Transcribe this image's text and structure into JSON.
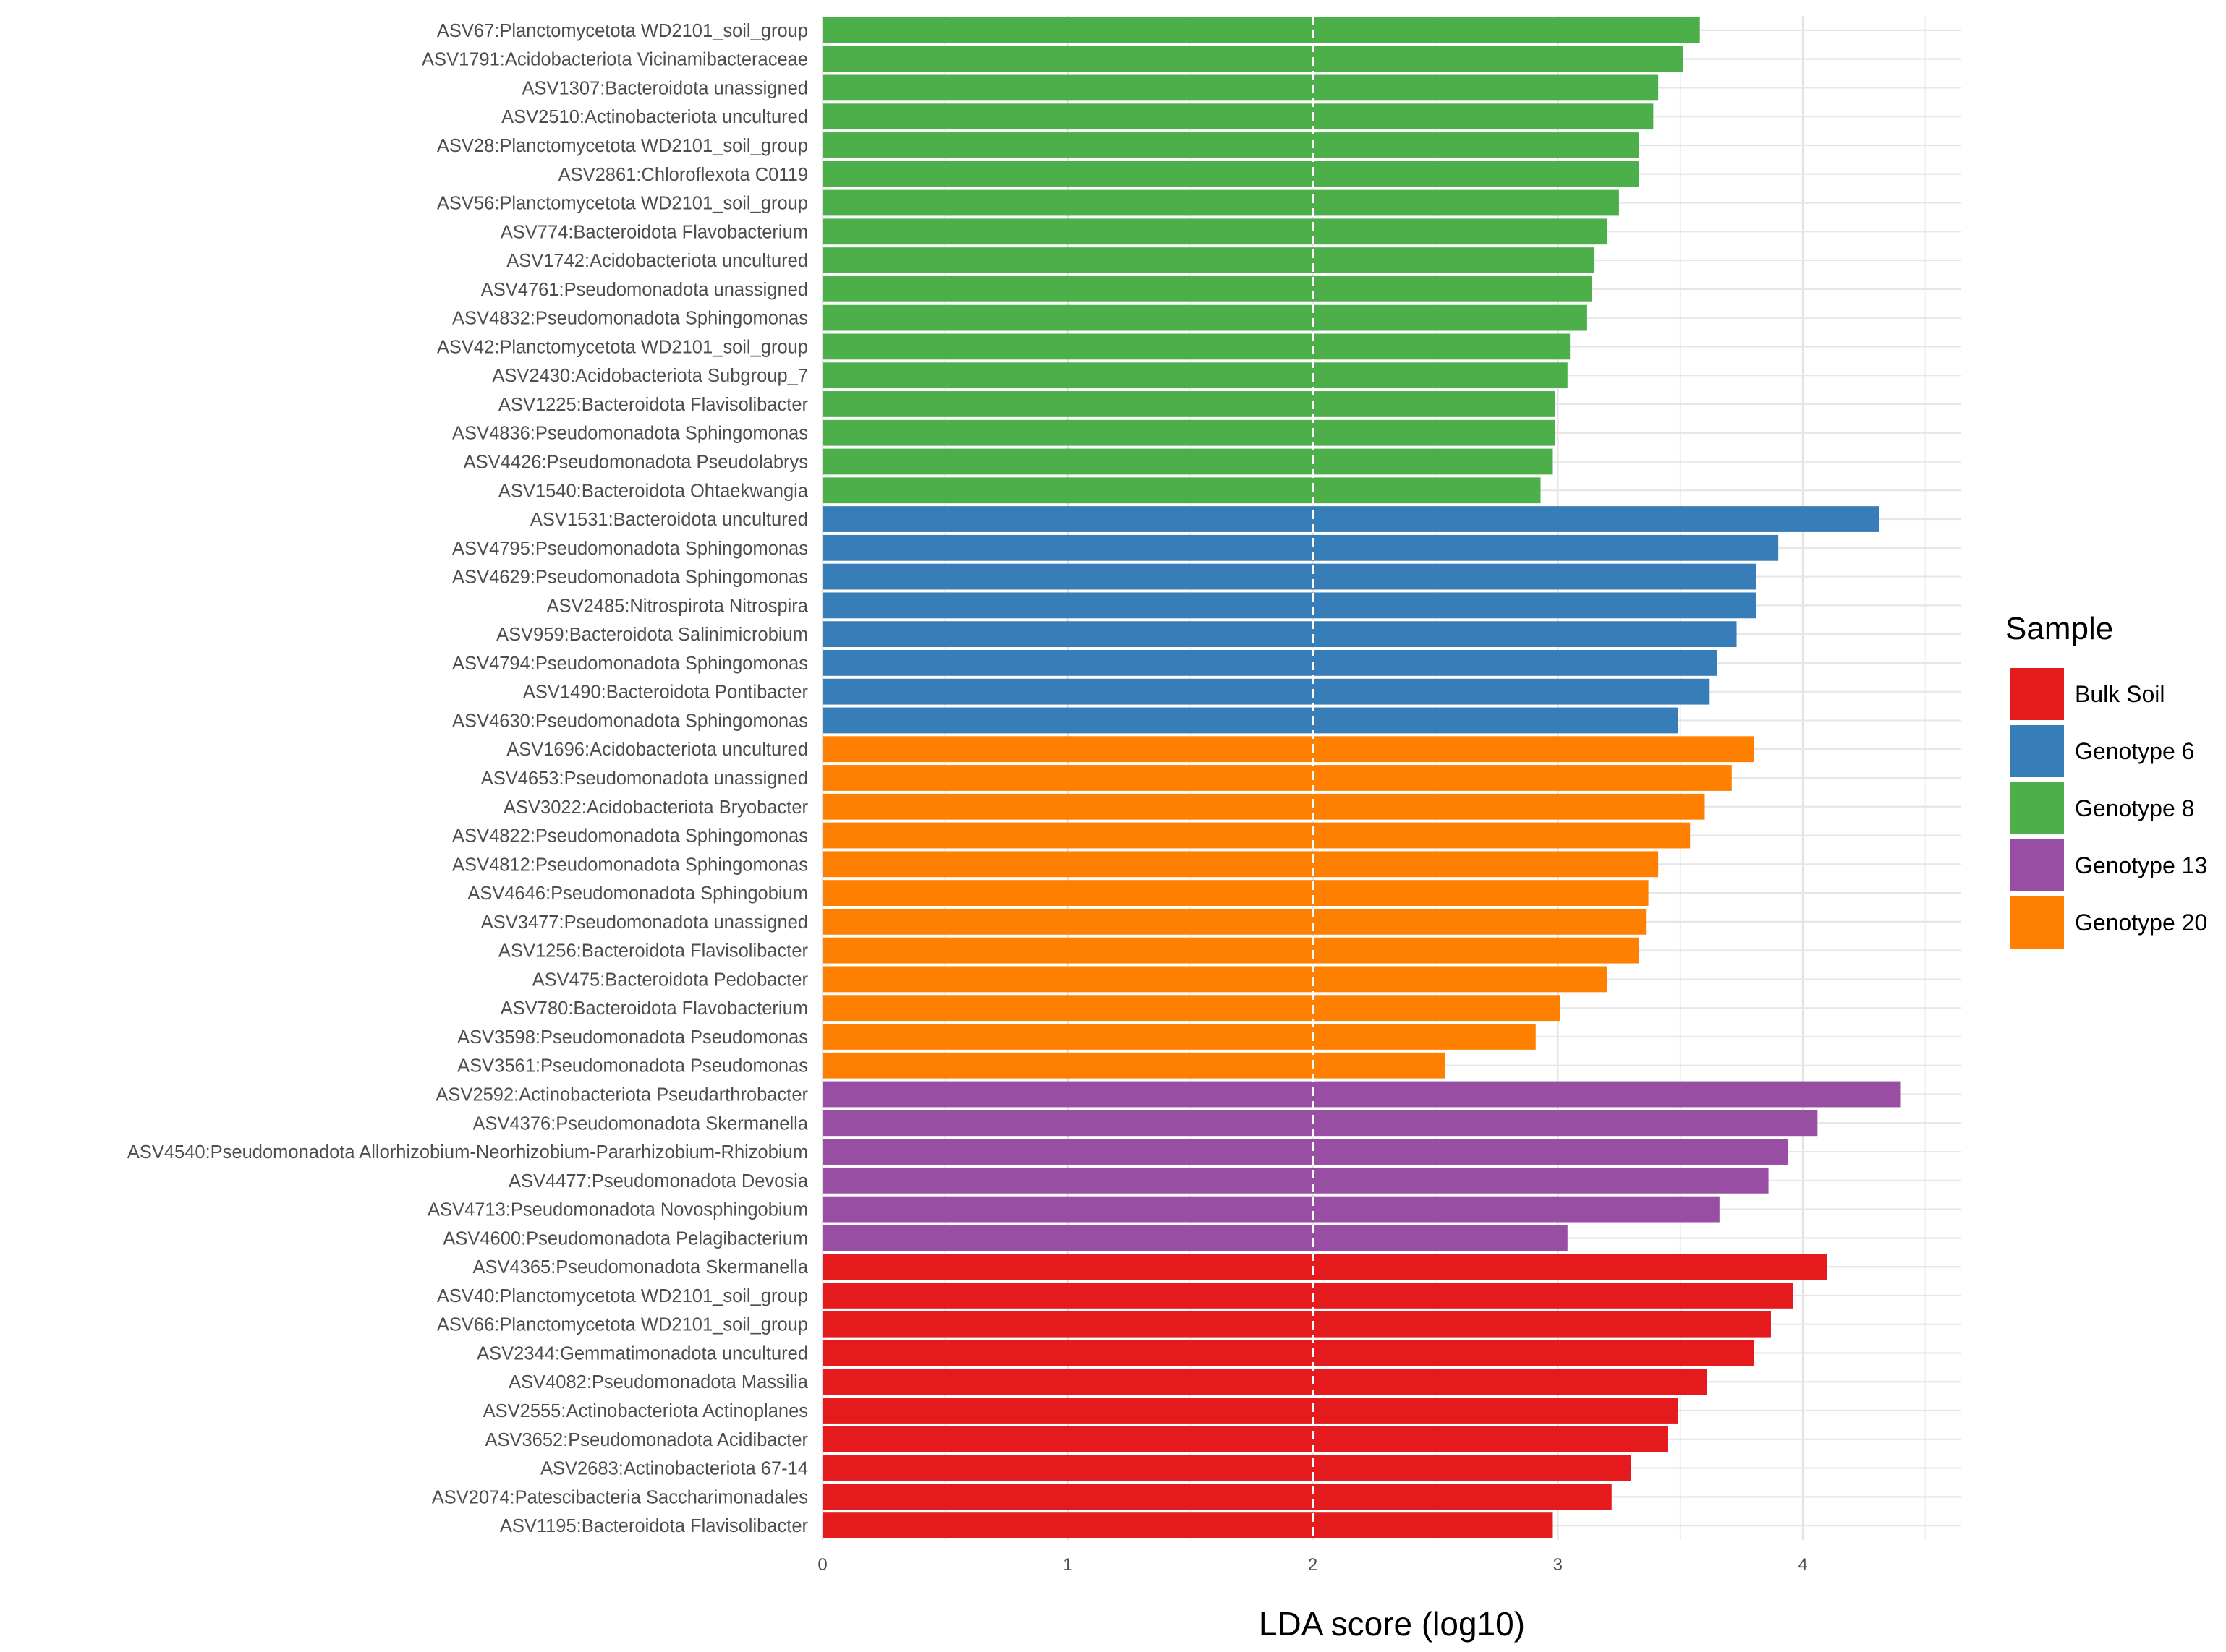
{
  "chart_data": {
    "type": "bar",
    "orientation": "horizontal",
    "xlabel": "LDA score (log10)",
    "xlim": [
      0,
      4.6
    ],
    "xticks": [
      0,
      1,
      2,
      3,
      4
    ],
    "xtick_labels": [
      "0",
      "1",
      "2",
      "3",
      "4"
    ],
    "reference_line": 2,
    "grid": true,
    "legend": {
      "title": "Sample",
      "position": "right",
      "entries": [
        {
          "name": "Bulk Soil",
          "color": "#e41a1c"
        },
        {
          "name": "Genotype 6",
          "color": "#377eb8"
        },
        {
          "name": "Genotype 8",
          "color": "#4daf4a"
        },
        {
          "name": "Genotype 13",
          "color": "#984ea3"
        },
        {
          "name": "Genotype 20",
          "color": "#ff7f00"
        }
      ]
    },
    "bars": [
      {
        "label": "ASV67:Planctomycetota WD2101_soil_group",
        "value": 3.58,
        "group": "Genotype 8"
      },
      {
        "label": "ASV1791:Acidobacteriota Vicinamibacteraceae",
        "value": 3.51,
        "group": "Genotype 8"
      },
      {
        "label": "ASV1307:Bacteroidota unassigned",
        "value": 3.41,
        "group": "Genotype 8"
      },
      {
        "label": "ASV2510:Actinobacteriota uncultured",
        "value": 3.39,
        "group": "Genotype 8"
      },
      {
        "label": "ASV28:Planctomycetota WD2101_soil_group",
        "value": 3.33,
        "group": "Genotype 8"
      },
      {
        "label": "ASV2861:Chloroflexota C0119",
        "value": 3.33,
        "group": "Genotype 8"
      },
      {
        "label": "ASV56:Planctomycetota WD2101_soil_group",
        "value": 3.25,
        "group": "Genotype 8"
      },
      {
        "label": "ASV774:Bacteroidota Flavobacterium",
        "value": 3.2,
        "group": "Genotype 8"
      },
      {
        "label": "ASV1742:Acidobacteriota uncultured",
        "value": 3.15,
        "group": "Genotype 8"
      },
      {
        "label": "ASV4761:Pseudomonadota unassigned",
        "value": 3.14,
        "group": "Genotype 8"
      },
      {
        "label": "ASV4832:Pseudomonadota Sphingomonas",
        "value": 3.12,
        "group": "Genotype 8"
      },
      {
        "label": "ASV42:Planctomycetota WD2101_soil_group",
        "value": 3.05,
        "group": "Genotype 8"
      },
      {
        "label": "ASV2430:Acidobacteriota Subgroup_7",
        "value": 3.04,
        "group": "Genotype 8"
      },
      {
        "label": "ASV1225:Bacteroidota Flavisolibacter",
        "value": 2.99,
        "group": "Genotype 8"
      },
      {
        "label": "ASV4836:Pseudomonadota Sphingomonas",
        "value": 2.99,
        "group": "Genotype 8"
      },
      {
        "label": "ASV4426:Pseudomonadota Pseudolabrys",
        "value": 2.98,
        "group": "Genotype 8"
      },
      {
        "label": "ASV1540:Bacteroidota Ohtaekwangia",
        "value": 2.93,
        "group": "Genotype 8"
      },
      {
        "label": "ASV1531:Bacteroidota uncultured",
        "value": 4.31,
        "group": "Genotype 6"
      },
      {
        "label": "ASV4795:Pseudomonadota Sphingomonas",
        "value": 3.9,
        "group": "Genotype 6"
      },
      {
        "label": "ASV4629:Pseudomonadota Sphingomonas",
        "value": 3.81,
        "group": "Genotype 6"
      },
      {
        "label": "ASV2485:Nitrospirota Nitrospira",
        "value": 3.81,
        "group": "Genotype 6"
      },
      {
        "label": "ASV959:Bacteroidota Salinimicrobium",
        "value": 3.73,
        "group": "Genotype 6"
      },
      {
        "label": "ASV4794:Pseudomonadota Sphingomonas",
        "value": 3.65,
        "group": "Genotype 6"
      },
      {
        "label": "ASV1490:Bacteroidota Pontibacter",
        "value": 3.62,
        "group": "Genotype 6"
      },
      {
        "label": "ASV4630:Pseudomonadota Sphingomonas",
        "value": 3.49,
        "group": "Genotype 6"
      },
      {
        "label": "ASV1696:Acidobacteriota uncultured",
        "value": 3.8,
        "group": "Genotype 20"
      },
      {
        "label": "ASV4653:Pseudomonadota unassigned",
        "value": 3.71,
        "group": "Genotype 20"
      },
      {
        "label": "ASV3022:Acidobacteriota Bryobacter",
        "value": 3.6,
        "group": "Genotype 20"
      },
      {
        "label": "ASV4822:Pseudomonadota Sphingomonas",
        "value": 3.54,
        "group": "Genotype 20"
      },
      {
        "label": "ASV4812:Pseudomonadota Sphingomonas",
        "value": 3.41,
        "group": "Genotype 20"
      },
      {
        "label": "ASV4646:Pseudomonadota Sphingobium",
        "value": 3.37,
        "group": "Genotype 20"
      },
      {
        "label": "ASV3477:Pseudomonadota unassigned",
        "value": 3.36,
        "group": "Genotype 20"
      },
      {
        "label": "ASV1256:Bacteroidota Flavisolibacter",
        "value": 3.33,
        "group": "Genotype 20"
      },
      {
        "label": "ASV475:Bacteroidota Pedobacter",
        "value": 3.2,
        "group": "Genotype 20"
      },
      {
        "label": "ASV780:Bacteroidota Flavobacterium",
        "value": 3.01,
        "group": "Genotype 20"
      },
      {
        "label": "ASV3598:Pseudomonadota Pseudomonas",
        "value": 2.91,
        "group": "Genotype 20"
      },
      {
        "label": "ASV3561:Pseudomonadota Pseudomonas",
        "value": 2.54,
        "group": "Genotype 20"
      },
      {
        "label": "ASV2592:Actinobacteriota Pseudarthrobacter",
        "value": 4.4,
        "group": "Genotype 13"
      },
      {
        "label": "ASV4376:Pseudomonadota Skermanella",
        "value": 4.06,
        "group": "Genotype 13"
      },
      {
        "label": "ASV4540:Pseudomonadota Allorhizobium-Neorhizobium-Pararhizobium-Rhizobium",
        "value": 3.94,
        "group": "Genotype 13"
      },
      {
        "label": "ASV4477:Pseudomonadota Devosia",
        "value": 3.86,
        "group": "Genotype 13"
      },
      {
        "label": "ASV4713:Pseudomonadota Novosphingobium",
        "value": 3.66,
        "group": "Genotype 13"
      },
      {
        "label": "ASV4600:Pseudomonadota Pelagibacterium",
        "value": 3.04,
        "group": "Genotype 13"
      },
      {
        "label": "ASV4365:Pseudomonadota Skermanella",
        "value": 4.1,
        "group": "Bulk Soil"
      },
      {
        "label": "ASV40:Planctomycetota WD2101_soil_group",
        "value": 3.96,
        "group": "Bulk Soil"
      },
      {
        "label": "ASV66:Planctomycetota WD2101_soil_group",
        "value": 3.87,
        "group": "Bulk Soil"
      },
      {
        "label": "ASV2344:Gemmatimonadota uncultured",
        "value": 3.8,
        "group": "Bulk Soil"
      },
      {
        "label": "ASV4082:Pseudomonadota Massilia",
        "value": 3.61,
        "group": "Bulk Soil"
      },
      {
        "label": "ASV2555:Actinobacteriota Actinoplanes",
        "value": 3.49,
        "group": "Bulk Soil"
      },
      {
        "label": "ASV3652:Pseudomonadota Acidibacter",
        "value": 3.45,
        "group": "Bulk Soil"
      },
      {
        "label": "ASV2683:Actinobacteriota 67-14",
        "value": 3.3,
        "group": "Bulk Soil"
      },
      {
        "label": "ASV2074:Patescibacteria Saccharimonadales",
        "value": 3.22,
        "group": "Bulk Soil"
      },
      {
        "label": "ASV1195:Bacteroidota Flavisolibacter",
        "value": 2.98,
        "group": "Bulk Soil"
      }
    ]
  }
}
